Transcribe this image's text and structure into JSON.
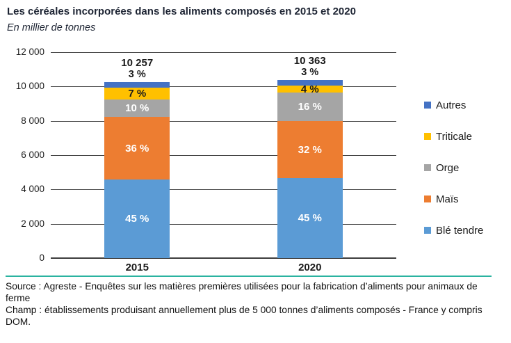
{
  "header": {
    "title": "Les céréales incorporées dans les aliments composés en 2015 et 2020",
    "subtitle": "En millier de tonnes"
  },
  "footer": {
    "divider_color": "#2ab3a0",
    "source": "Source : Agreste - Enquêtes sur les matières premières utilisées pour la fabrication d’aliments pour animaux de ferme",
    "champ": "Champ : établissements produisant annuellement plus de 5 000 tonnes d’aliments composés - France y compris DOM."
  },
  "chart_data": {
    "type": "bar",
    "stacked": true,
    "title": "Les céréales incorporées dans les aliments composés en 2015 et 2020",
    "ylabel": "En millier de tonnes",
    "xlabel": "",
    "categories": [
      "2015",
      "2020"
    ],
    "totals": [
      10257,
      10363
    ],
    "total_labels": [
      "10 257",
      "10 363"
    ],
    "ymax": 12000,
    "grid": true,
    "legend_position": "right",
    "y_ticks": [
      {
        "value": 12000,
        "label": "12 000"
      },
      {
        "value": 10000,
        "label": "10 000"
      },
      {
        "value": 8000,
        "label": "8 000"
      },
      {
        "value": 6000,
        "label": "6 000"
      },
      {
        "value": 4000,
        "label": "4 000"
      },
      {
        "value": 2000,
        "label": "2 000"
      },
      {
        "value": 0,
        "label": "0"
      }
    ],
    "series": [
      {
        "name": "Blé tendre",
        "color": "#5B9BD5",
        "values_pct": [
          45,
          45
        ],
        "labels": [
          "45 %",
          "45 %"
        ],
        "label_color": "#ffffff",
        "label_position": "inside"
      },
      {
        "name": "Maïs",
        "color": "#ED7D31",
        "values_pct": [
          36,
          32
        ],
        "labels": [
          "36 %",
          "32 %"
        ],
        "label_color": "#ffffff",
        "label_position": "inside"
      },
      {
        "name": "Orge",
        "color": "#A5A5A5",
        "values_pct": [
          10,
          16
        ],
        "labels": [
          "10 %",
          "16 %"
        ],
        "label_color": "#ffffff",
        "label_position": "inside"
      },
      {
        "name": "Triticale",
        "color": "#FFC000",
        "values_pct": [
          7,
          4
        ],
        "labels": [
          "7 %",
          "4 %"
        ],
        "label_color": "#1a1a1a",
        "label_position": "inside"
      },
      {
        "name": "Autres",
        "color": "#4472C4",
        "values_pct": [
          3,
          3
        ],
        "labels": [
          "3 %",
          "3 %"
        ],
        "label_color": "#1a1a1a",
        "label_position": "above"
      }
    ],
    "legend": [
      "Autres",
      "Triticale",
      "Orge",
      "Maïs",
      "Blé tendre"
    ]
  }
}
